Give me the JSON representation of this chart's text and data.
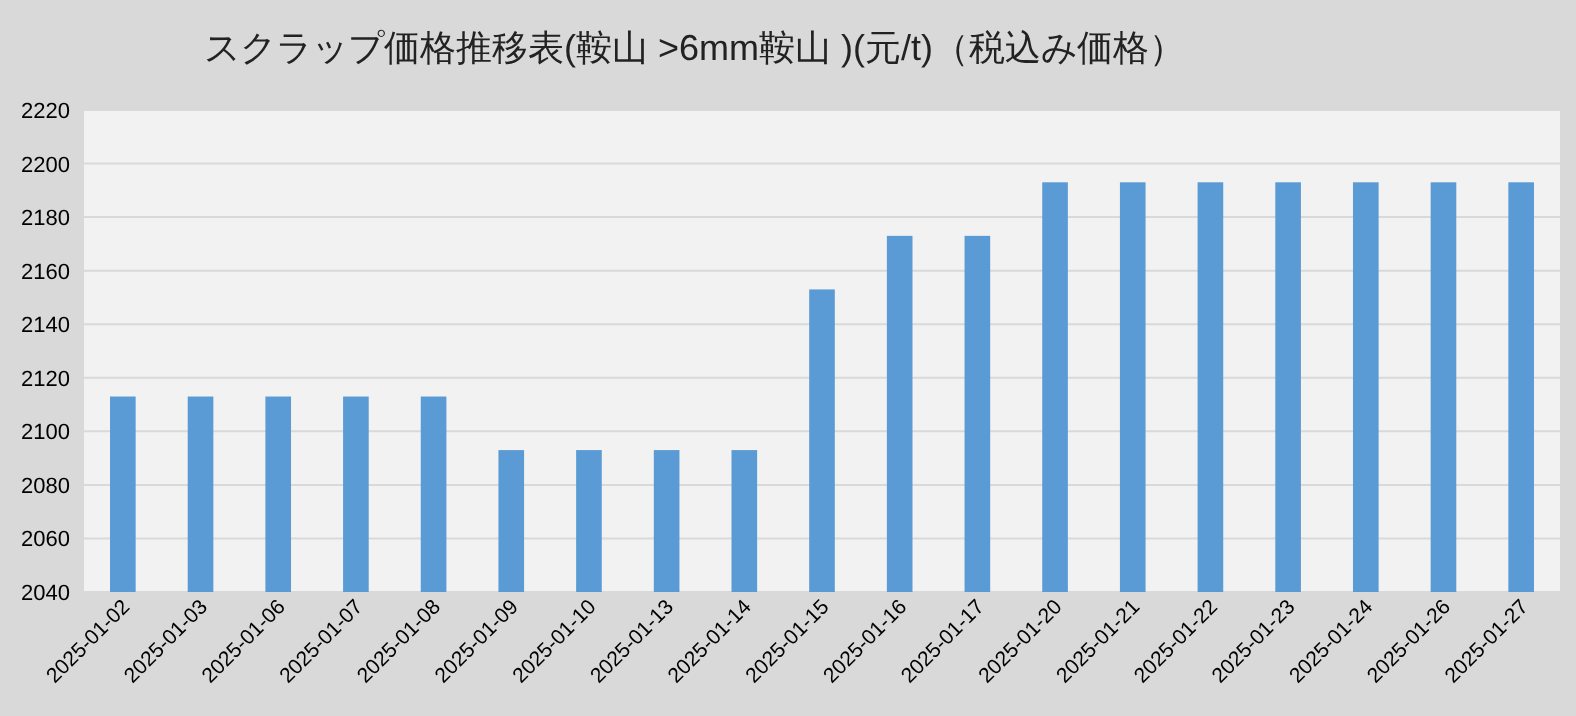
{
  "chart_data": {
    "type": "bar",
    "title": "スクラップ価格推移表(鞍山 >6mm鞍山 )(元/t)（税込み価格）",
    "categories": [
      "2025-01-02",
      "2025-01-03",
      "2025-01-06",
      "2025-01-07",
      "2025-01-08",
      "2025-01-09",
      "2025-01-10",
      "2025-01-13",
      "2025-01-14",
      "2025-01-15",
      "2025-01-16",
      "2025-01-17",
      "2025-01-20",
      "2025-01-21",
      "2025-01-22",
      "2025-01-23",
      "2025-01-24",
      "2025-01-26",
      "2025-01-27"
    ],
    "values": [
      2113,
      2113,
      2113,
      2113,
      2113,
      2093,
      2093,
      2093,
      2093,
      2153,
      2173,
      2173,
      2193,
      2193,
      2193,
      2193,
      2193,
      2193,
      2193
    ],
    "color": "#5b9bd5",
    "ylim": [
      2040,
      2220
    ],
    "yticks": [
      2040,
      2060,
      2080,
      2100,
      2120,
      2140,
      2160,
      2180,
      2200,
      2220
    ],
    "grid": "y"
  }
}
